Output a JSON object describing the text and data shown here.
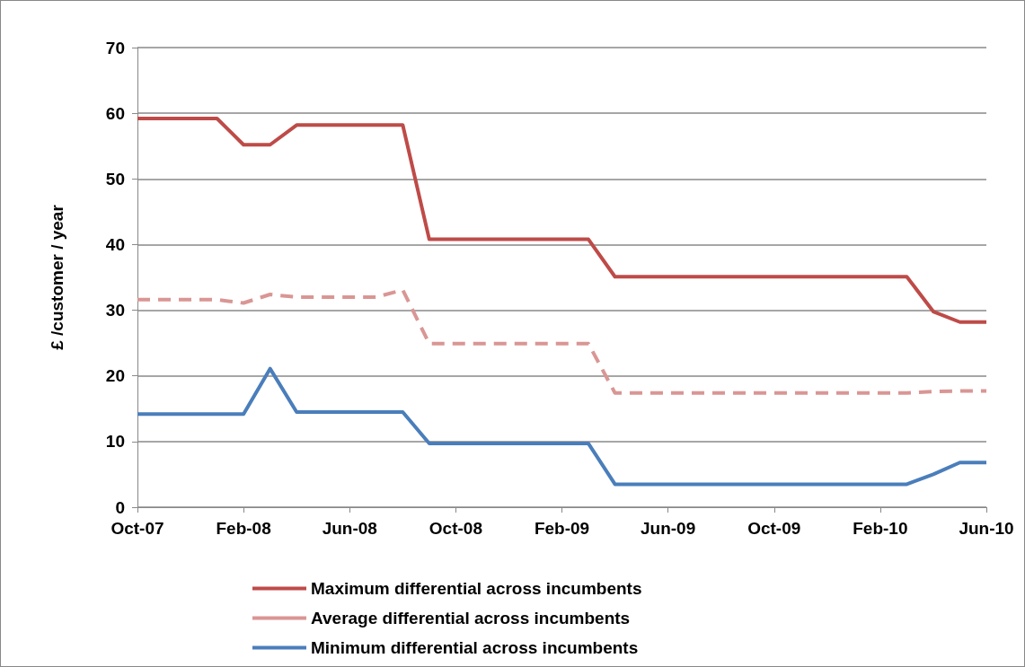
{
  "chart_data": {
    "type": "line",
    "ylabel": "£ /customer / year",
    "categories": [
      "Oct-07",
      null,
      null,
      null,
      "Feb-08",
      null,
      null,
      null,
      "Jun-08",
      null,
      null,
      null,
      "Oct-08",
      null,
      null,
      null,
      "Feb-09",
      null,
      null,
      null,
      "Jun-09",
      null,
      null,
      null,
      "Oct-09",
      null,
      null,
      null,
      "Feb-10",
      null,
      null,
      null,
      "Jun-10"
    ],
    "series": [
      {
        "name": "Maximum differential across incumbents",
        "color": "#be4b48",
        "line_style": "solid",
        "values": [
          59.2,
          59.2,
          59.2,
          59.2,
          55.2,
          55.2,
          58.2,
          58.2,
          58.2,
          58.2,
          58.2,
          40.8,
          40.8,
          40.8,
          40.8,
          40.8,
          40.8,
          40.8,
          35.1,
          35.1,
          35.1,
          35.1,
          35.1,
          35.1,
          35.1,
          35.1,
          35.1,
          35.1,
          35.1,
          35.1,
          29.8,
          28.2,
          28.2
        ]
      },
      {
        "name": "Average differential across incumbents",
        "color": "#d99694",
        "line_style": "dashed",
        "values": [
          31.6,
          31.6,
          31.6,
          31.6,
          31.1,
          32.4,
          32.0,
          32.0,
          32.0,
          32.0,
          33.1,
          24.9,
          24.9,
          24.9,
          24.9,
          24.9,
          24.9,
          24.9,
          17.4,
          17.4,
          17.4,
          17.4,
          17.4,
          17.4,
          17.4,
          17.4,
          17.4,
          17.4,
          17.4,
          17.4,
          17.6,
          17.7,
          17.7
        ]
      },
      {
        "name": "Minimum differential across incumbents",
        "color": "#4a7ebb",
        "line_style": "solid",
        "values": [
          14.2,
          14.2,
          14.2,
          14.2,
          14.2,
          21.1,
          14.5,
          14.5,
          14.5,
          14.5,
          14.5,
          9.7,
          9.7,
          9.7,
          9.7,
          9.7,
          9.7,
          9.7,
          3.5,
          3.5,
          3.5,
          3.5,
          3.5,
          3.5,
          3.5,
          3.5,
          3.5,
          3.5,
          3.5,
          3.5,
          5.0,
          6.8,
          6.8
        ]
      }
    ],
    "ylim": [
      0,
      70
    ],
    "yticks": [
      0,
      10,
      20,
      30,
      40,
      50,
      60,
      70
    ],
    "grid": "y",
    "legend": "bottom",
    "marker": "none"
  }
}
